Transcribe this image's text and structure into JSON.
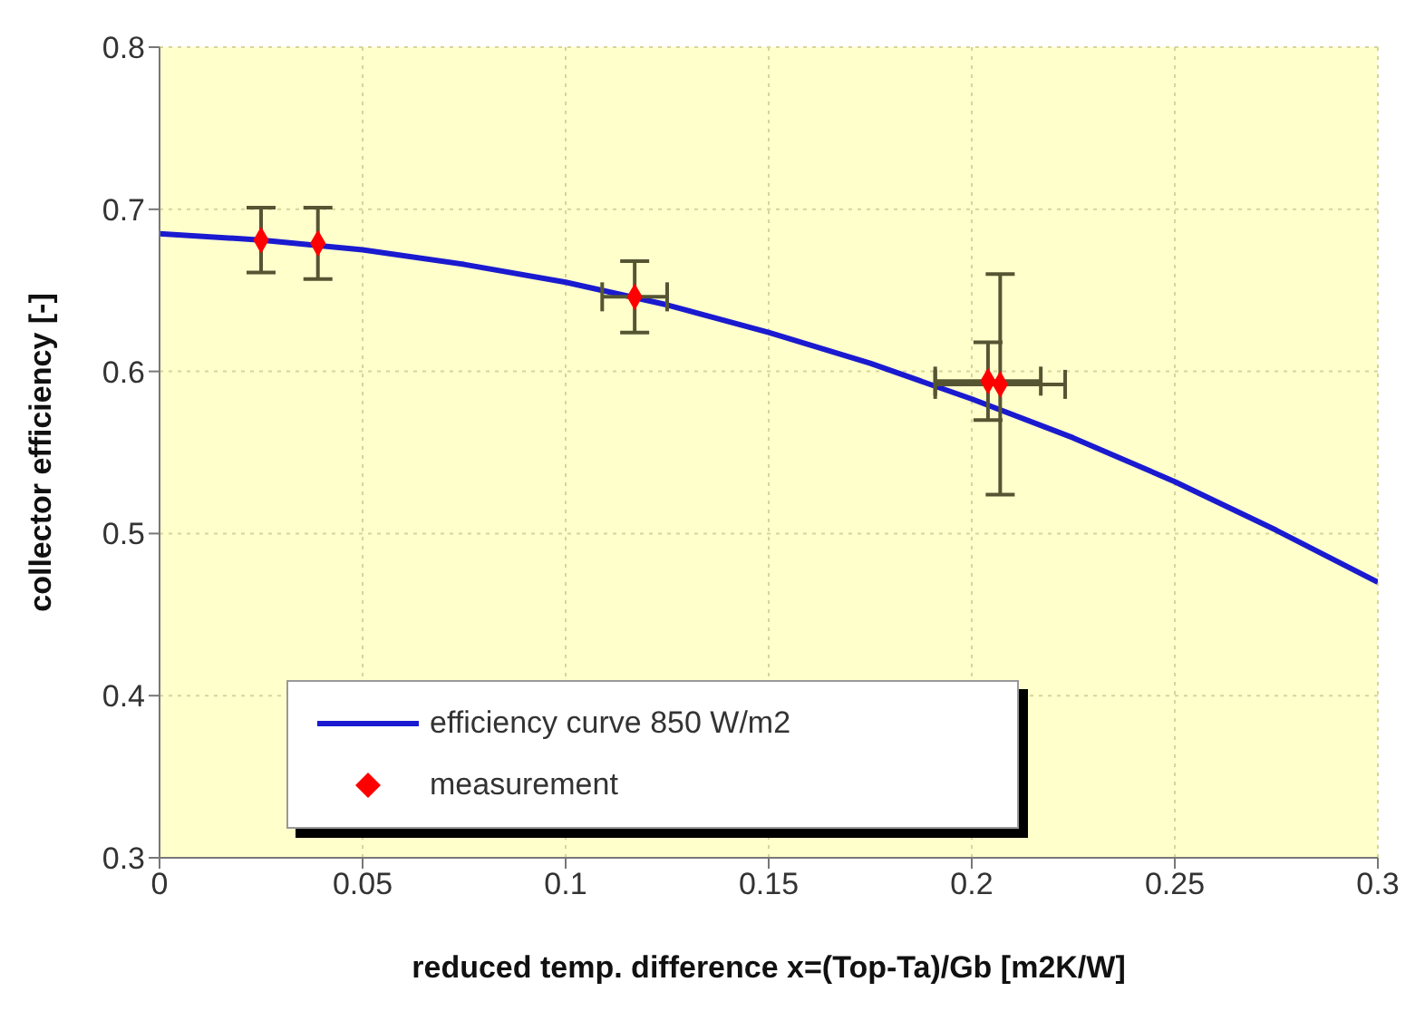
{
  "chart_data": {
    "type": "scatter",
    "xlabel": "reduced temp. difference x=(Top-Ta)/Gb [m2K/W]",
    "ylabel": "collector efficiency [-]",
    "xlim": [
      0,
      0.3
    ],
    "xticks": [
      0,
      0.05,
      0.1,
      0.15,
      0.2,
      0.25,
      0.3
    ],
    "ylim": [
      0.3,
      0.8
    ],
    "yticks": [
      0.3,
      0.4,
      0.5,
      0.6,
      0.7,
      0.8
    ],
    "grid": true,
    "legend": "bottom left",
    "series": [
      {
        "name": "efficiency curve 850 W/m2",
        "type": "line",
        "color": "#1a1ad0",
        "marker": "none",
        "line_style": "solid",
        "x": [
          0,
          0.025,
          0.05,
          0.075,
          0.1,
          0.125,
          0.15,
          0.175,
          0.2,
          0.225,
          0.25,
          0.275,
          0.3
        ],
        "values": [
          0.685,
          0.681,
          0.675,
          0.666,
          0.655,
          0.641,
          0.624,
          0.605,
          0.583,
          0.559,
          0.532,
          0.502,
          0.47
        ]
      },
      {
        "name": "measurement",
        "type": "scatter",
        "color": "#ff0000",
        "marker": "diamond",
        "x": [
          0.025,
          0.039,
          0.117,
          0.204,
          0.207
        ],
        "values": [
          0.681,
          0.679,
          0.646,
          0.594,
          0.592
        ],
        "errors": [
          0.02,
          0.022,
          0.022,
          0.024,
          0.068
        ],
        "xerrors": [
          null,
          null,
          0.008,
          0.013,
          0.016
        ]
      }
    ]
  }
}
